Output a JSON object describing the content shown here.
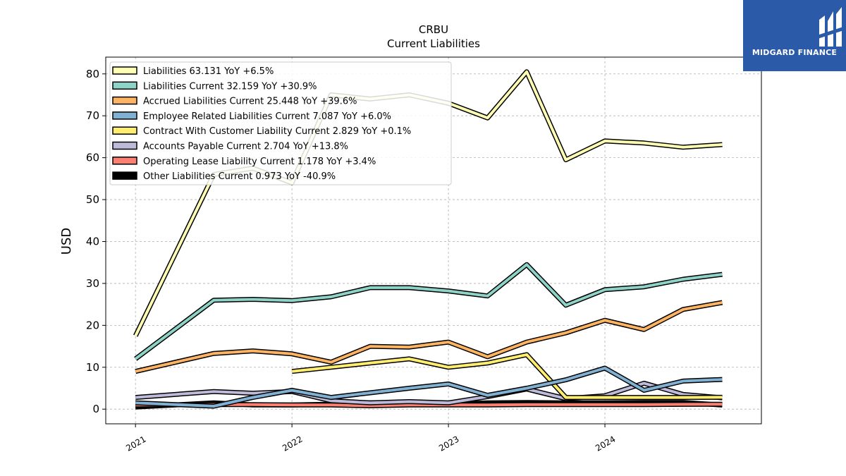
{
  "logo": {
    "text": "MIDGARD FINANCE",
    "icon": "midgard-logo-icon",
    "background": "#2b5aa8"
  },
  "chart_data": {
    "type": "line",
    "title": "CRBU",
    "subtitle": "Current  Liabilities",
    "ylabel": "USD",
    "xlabel": "",
    "ylim": [
      -3.5,
      84
    ],
    "xlim": [
      2020.81,
      2025.0
    ],
    "yticks": [
      0,
      10,
      20,
      30,
      40,
      50,
      60,
      70,
      80
    ],
    "xticks": [
      {
        "value": 2021.0,
        "label": "2021"
      },
      {
        "value": 2022.0,
        "label": "2022"
      },
      {
        "value": 2023.0,
        "label": "2023"
      },
      {
        "value": 2024.0,
        "label": "2024"
      }
    ],
    "grid": true,
    "legend_position": "top-left",
    "series": [
      {
        "name": "Liabilities",
        "legend": "Liabilities  63.131 YoY +6.5%",
        "color": "#ffffb3",
        "x": [
          2021.0,
          2021.5,
          2021.75,
          2022.0,
          2022.25,
          2022.5,
          2022.75,
          2023.0,
          2023.25,
          2023.5,
          2023.75,
          2024.0,
          2024.25,
          2024.5,
          2024.75
        ],
        "y": [
          17.5,
          56.0,
          57.5,
          54.0,
          75.0,
          74.0,
          75.0,
          73.0,
          69.5,
          80.5,
          59.5,
          64.0,
          63.5,
          62.5,
          63.131
        ]
      },
      {
        "name": "Liabilities Current",
        "legend": "Liabilities Current  32.159 YoY +30.9%",
        "color": "#8dd3c7",
        "x": [
          2021.0,
          2021.5,
          2021.75,
          2022.0,
          2022.25,
          2022.5,
          2022.75,
          2023.0,
          2023.25,
          2023.5,
          2023.75,
          2024.0,
          2024.25,
          2024.5,
          2024.75
        ],
        "y": [
          12.0,
          26.0,
          26.2,
          25.9,
          26.8,
          29.0,
          29.0,
          28.2,
          27.0,
          34.5,
          24.8,
          28.5,
          29.2,
          31.0,
          32.159
        ]
      },
      {
        "name": "Accrued Liabilities Current",
        "legend": "Accrued Liabilities Current  25.448 YoY +39.6%",
        "color": "#fdb462",
        "x": [
          2021.0,
          2021.5,
          2021.75,
          2022.0,
          2022.25,
          2022.5,
          2022.75,
          2023.0,
          2023.25,
          2023.5,
          2023.75,
          2024.0,
          2024.25,
          2024.5,
          2024.75
        ],
        "y": [
          9.0,
          13.3,
          13.9,
          13.2,
          11.2,
          15.0,
          14.8,
          16.0,
          12.5,
          16.0,
          18.2,
          21.2,
          19.0,
          23.8,
          25.448
        ]
      },
      {
        "name": "Employee Related Liabilities Current",
        "legend": "Employee Related Liabilities Current  7.087 YoY +6.0%",
        "color": "#80b1d3",
        "x": [
          2021.0,
          2021.5,
          2021.75,
          2022.0,
          2022.25,
          2022.5,
          2022.75,
          2023.0,
          2023.25,
          2023.5,
          2023.75,
          2024.0,
          2024.25,
          2024.5,
          2024.75
        ],
        "y": [
          1.5,
          0.7,
          2.8,
          4.5,
          2.8,
          3.9,
          5.0,
          6.0,
          3.3,
          5.0,
          7.0,
          9.8,
          4.5,
          6.7,
          7.087
        ]
      },
      {
        "name": "Contract With Customer Liability Current",
        "legend": "Contract With Customer Liability Current  2.829 YoY +0.1%",
        "color": "#ffed6f",
        "x": [
          2022.0,
          2022.25,
          2022.5,
          2022.75,
          2023.0,
          2023.25,
          2023.5,
          2023.75,
          2024.0,
          2024.25,
          2024.5,
          2024.75
        ],
        "y": [
          9.0,
          10.0,
          11.0,
          12.0,
          10.0,
          11.0,
          13.0,
          2.8,
          2.8,
          2.8,
          2.8,
          2.829
        ]
      },
      {
        "name": "Accounts Payable Current",
        "legend": "Accounts Payable Current  2.704 YoY +13.8%",
        "color": "#bebada",
        "x": [
          2021.0,
          2021.5,
          2021.75,
          2022.0,
          2022.25,
          2022.5,
          2022.75,
          2023.0,
          2023.25,
          2023.5,
          2023.75,
          2024.0,
          2024.25,
          2024.5,
          2024.75
        ],
        "y": [
          2.8,
          4.2,
          3.8,
          4.2,
          2.0,
          1.5,
          1.8,
          1.5,
          3.0,
          4.8,
          2.5,
          3.2,
          6.2,
          3.5,
          2.704
        ]
      },
      {
        "name": "Operating Lease Liability Current",
        "legend": "Operating Lease Liability Current  1.178 YoY +3.4%",
        "color": "#fb8072",
        "x": [
          2021.0,
          2021.5,
          2021.75,
          2022.0,
          2022.25,
          2022.5,
          2022.75,
          2023.0,
          2023.25,
          2023.5,
          2023.75,
          2024.0,
          2024.25,
          2024.5,
          2024.75
        ],
        "y": [
          1.0,
          1.1,
          1.1,
          1.0,
          1.0,
          0.8,
          1.0,
          1.0,
          1.0,
          1.1,
          1.1,
          1.1,
          1.1,
          1.15,
          1.178
        ]
      },
      {
        "name": "Other Liabilities Current",
        "legend": "Other Liabilities Current  0.973 YoY -40.9%",
        "color": "#000000",
        "x": [
          2021.0,
          2021.5,
          2021.75,
          2022.0,
          2022.25,
          2022.5,
          2022.75,
          2023.0,
          2023.25,
          2023.5,
          2023.75,
          2024.0,
          2024.25,
          2024.5,
          2024.75
        ],
        "y": [
          0.5,
          1.5,
          1.0,
          1.0,
          1.2,
          1.5,
          1.5,
          1.2,
          1.5,
          1.6,
          1.5,
          1.5,
          1.6,
          1.6,
          0.973
        ]
      }
    ]
  }
}
